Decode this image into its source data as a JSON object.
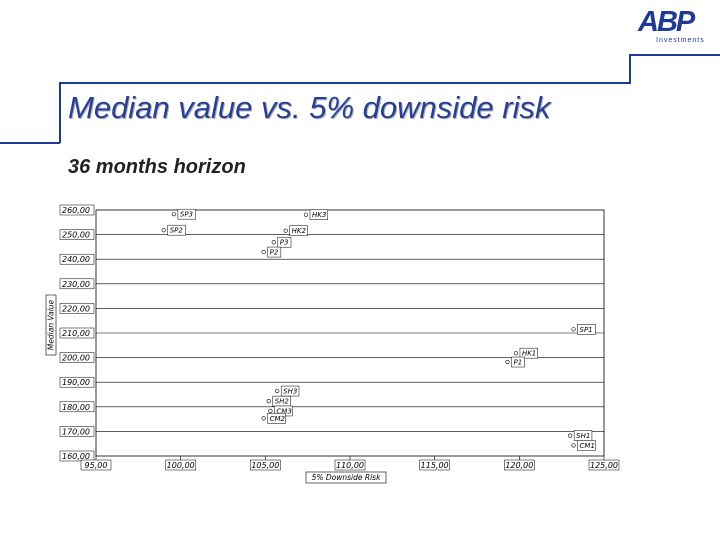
{
  "slide": {
    "title": "Median value vs. 5% downside risk",
    "subtitle": "36 months horizon",
    "logo_text": "ABP",
    "logo_subtext": "Investments",
    "accent_color": "#1f3a93"
  },
  "chart_data": {
    "type": "scatter",
    "xlabel": "5% Downside Risk",
    "ylabel": "Median Value",
    "xlim": [
      95,
      125
    ],
    "ylim": [
      160,
      260
    ],
    "x_ticks": [
      "95,00",
      "100,00",
      "105,00",
      "110,00",
      "115,00",
      "120,00",
      "125,00"
    ],
    "y_ticks": [
      "160,00",
      "170,00",
      "180,00",
      "190,00",
      "200,00",
      "210,00",
      "220,00",
      "230,00",
      "240,00",
      "250,00",
      "260,00"
    ],
    "grid": "horizontal",
    "points": [
      {
        "label": "SP3",
        "x": 99.6,
        "y": 258.3
      },
      {
        "label": "SP2",
        "x": 99.0,
        "y": 251.8
      },
      {
        "label": "HK3",
        "x": 107.4,
        "y": 258.1
      },
      {
        "label": "HK2",
        "x": 106.2,
        "y": 251.6
      },
      {
        "label": "P3",
        "x": 105.5,
        "y": 246.9
      },
      {
        "label": "P2",
        "x": 104.9,
        "y": 242.9
      },
      {
        "label": "SP1",
        "x": 123.2,
        "y": 211.5
      },
      {
        "label": "HK1",
        "x": 119.8,
        "y": 201.8
      },
      {
        "label": "P1",
        "x": 119.3,
        "y": 198.2
      },
      {
        "label": "SH3",
        "x": 105.7,
        "y": 186.4
      },
      {
        "label": "SH2",
        "x": 105.2,
        "y": 182.3
      },
      {
        "label": "CM3",
        "x": 105.3,
        "y": 178.3
      },
      {
        "label": "CM2",
        "x": 104.9,
        "y": 175.3
      },
      {
        "label": "SH1",
        "x": 123.0,
        "y": 168.3
      },
      {
        "label": "CM1",
        "x": 123.2,
        "y": 164.3
      }
    ]
  }
}
